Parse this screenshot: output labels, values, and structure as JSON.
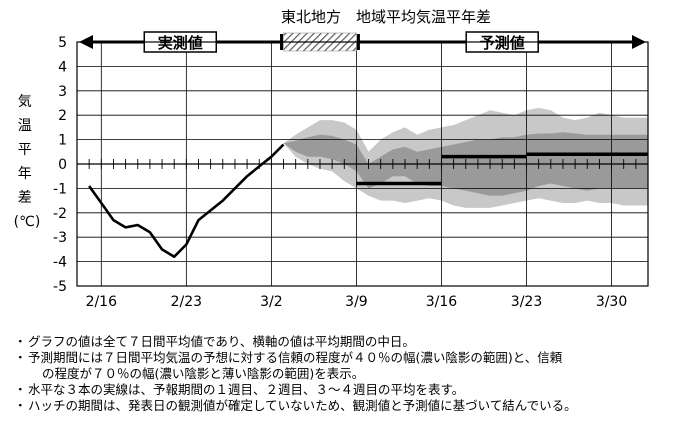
{
  "chart_data": {
    "type": "line",
    "title": "東北地方　地域平均気温平年差",
    "ylabel": "気温平年差(℃)",
    "ylim": [
      -5,
      5
    ],
    "y_ticks": [
      "5",
      "4",
      "3",
      "2",
      "1",
      "0",
      "-1",
      "-2",
      "-3",
      "-4",
      "-5"
    ],
    "x_axis": {
      "tick_labels": [
        "2/16",
        "2/23",
        "3/2",
        "3/9",
        "3/16",
        "3/23",
        "3/30"
      ],
      "tick_days": [
        16,
        23,
        30,
        37,
        44,
        51,
        58
      ],
      "range_days": [
        14,
        61
      ]
    },
    "grid": true,
    "period_labels": {
      "observed": "実測値",
      "forecast": "予測値"
    },
    "observed_series": {
      "name": "実測値",
      "x": [
        15,
        16,
        17,
        18,
        19,
        20,
        21,
        22,
        23,
        24,
        25,
        26,
        27,
        28,
        29,
        30,
        31
      ],
      "values": [
        -0.9,
        -1.6,
        -2.3,
        -2.6,
        -2.5,
        -2.8,
        -3.5,
        -3.8,
        -3.3,
        -2.3,
        -1.9,
        -1.5,
        -1.0,
        -0.5,
        -0.1,
        0.3,
        0.8
      ]
    },
    "hatch_period": [
      31,
      37
    ],
    "forecast_bands": {
      "x": [
        31,
        32,
        33,
        34,
        35,
        36,
        37,
        38,
        39,
        40,
        41,
        42,
        43,
        44,
        45,
        46,
        47,
        48,
        49,
        50,
        51,
        52,
        53,
        54,
        55,
        56,
        57,
        58,
        59,
        60,
        61
      ],
      "outer_upper": [
        0.85,
        1.2,
        1.5,
        1.8,
        1.8,
        1.7,
        1.4,
        0.5,
        1.0,
        1.3,
        1.5,
        1.2,
        1.4,
        1.5,
        1.6,
        1.8,
        2.0,
        2.2,
        2.1,
        2.0,
        2.2,
        2.3,
        2.2,
        1.9,
        1.8,
        1.9,
        2.1,
        2.0,
        1.9,
        1.9,
        1.9
      ],
      "inner_upper": [
        0.85,
        0.95,
        1.1,
        1.2,
        1.15,
        1.0,
        0.8,
        0.0,
        0.3,
        0.6,
        0.7,
        0.5,
        0.6,
        0.7,
        0.8,
        0.9,
        1.0,
        1.0,
        1.1,
        1.1,
        1.2,
        1.25,
        1.25,
        1.3,
        1.25,
        1.2,
        1.2,
        1.2,
        1.2,
        1.2,
        1.2
      ],
      "inner_lower": [
        0.85,
        0.5,
        0.3,
        0.3,
        0.2,
        0.0,
        -0.3,
        -1.0,
        -0.8,
        -0.5,
        -0.5,
        -0.8,
        -0.9,
        -0.9,
        -1.0,
        -1.1,
        -1.2,
        -1.3,
        -1.3,
        -1.2,
        -1.1,
        -0.9,
        -0.8,
        -0.9,
        -1.0,
        -1.1,
        -1.0,
        -1.0,
        -1.0,
        -1.0,
        -1.0
      ],
      "outer_lower": [
        0.85,
        0.3,
        0.0,
        -0.2,
        -0.3,
        -0.7,
        -1.0,
        -1.3,
        -1.5,
        -1.5,
        -1.6,
        -1.5,
        -1.4,
        -1.5,
        -1.7,
        -1.8,
        -1.8,
        -1.8,
        -1.7,
        -1.6,
        -1.5,
        -1.4,
        -1.5,
        -1.6,
        -1.6,
        -1.5,
        -1.6,
        -1.6,
        -1.7,
        -1.7,
        -1.7
      ]
    },
    "forecast_periods": [
      {
        "name": "1週目",
        "start": 37,
        "end": 44,
        "value": -0.8
      },
      {
        "name": "2週目",
        "start": 44,
        "end": 51,
        "value": 0.3
      },
      {
        "name": "3～4週目",
        "start": 51,
        "end": 61,
        "value": 0.4
      }
    ],
    "colors": {
      "outer_band": "#c8c8c8",
      "inner_band": "#9a9a9a",
      "line": "#000000",
      "grid": "#000000",
      "hatch": "#666666"
    }
  },
  "notes": [
    "グラフの値は全て７日間平均値であり、横軸の値は平均期間の中日。",
    "予測期間には７日間平均気温の予想に対する信頼の程度が４０％の幅(濃い陰影の範囲)と、信頼",
    "の程度が７０％の幅(濃い陰影と薄い陰影の範囲)を表示。",
    "水平な３本の実線は、予報期間の１週目、２週目、３～４週目の平均を表す。",
    "ハッチの期間は、発表日の観測値が確定していないため、観測値と予測値に基づいて結んでいる。"
  ]
}
